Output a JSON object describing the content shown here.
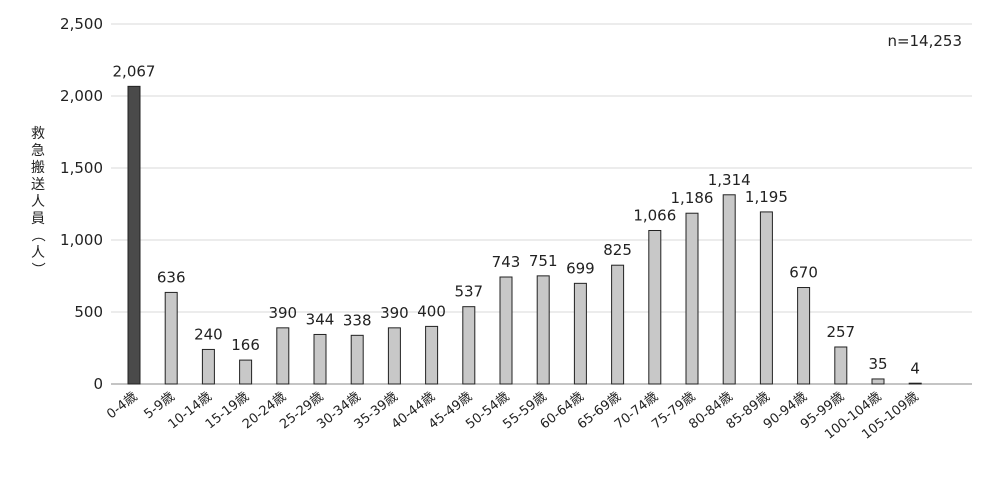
{
  "chart_data": {
    "type": "bar",
    "categories": [
      "0-4歳",
      "5-9歳",
      "10-14歳",
      "15-19歳",
      "20-24歳",
      "25-29歳",
      "30-34歳",
      "35-39歳",
      "40-44歳",
      "45-49歳",
      "50-54歳",
      "55-59歳",
      "60-64歳",
      "65-69歳",
      "70-74歳",
      "75-79歳",
      "80-84歳",
      "85-89歳",
      "90-94歳",
      "95-99歳",
      "100-104歳",
      "105-109歳"
    ],
    "values": [
      2067,
      636,
      240,
      166,
      390,
      344,
      338,
      390,
      400,
      537,
      743,
      751,
      699,
      825,
      1066,
      1186,
      1314,
      1195,
      670,
      257,
      35,
      4
    ],
    "value_labels": [
      "2,067",
      "636",
      "240",
      "166",
      "390",
      "344",
      "338",
      "390",
      "400",
      "537",
      "743",
      "751",
      "699",
      "825",
      "1,066",
      "1,186",
      "1,314",
      "1,195",
      "670",
      "257",
      "35",
      "4"
    ],
    "ylabel": "救急搬送人員（人）",
    "xlabel": "",
    "title": "",
    "ylim": [
      0,
      2500
    ],
    "yticks": [
      0,
      500,
      1000,
      1500,
      2000,
      2500
    ],
    "ytick_labels": [
      "0",
      "500",
      "1,000",
      "1,500",
      "2,000",
      "2,500"
    ],
    "annotation": "n=14,253",
    "grid": true,
    "legend": "none",
    "colors": {
      "highlight_bar": "#4a4a4a",
      "bar": "#c8c8c8",
      "bar_stroke": "#222222",
      "grid": "#d9d9d9",
      "axis": "#888888"
    }
  }
}
